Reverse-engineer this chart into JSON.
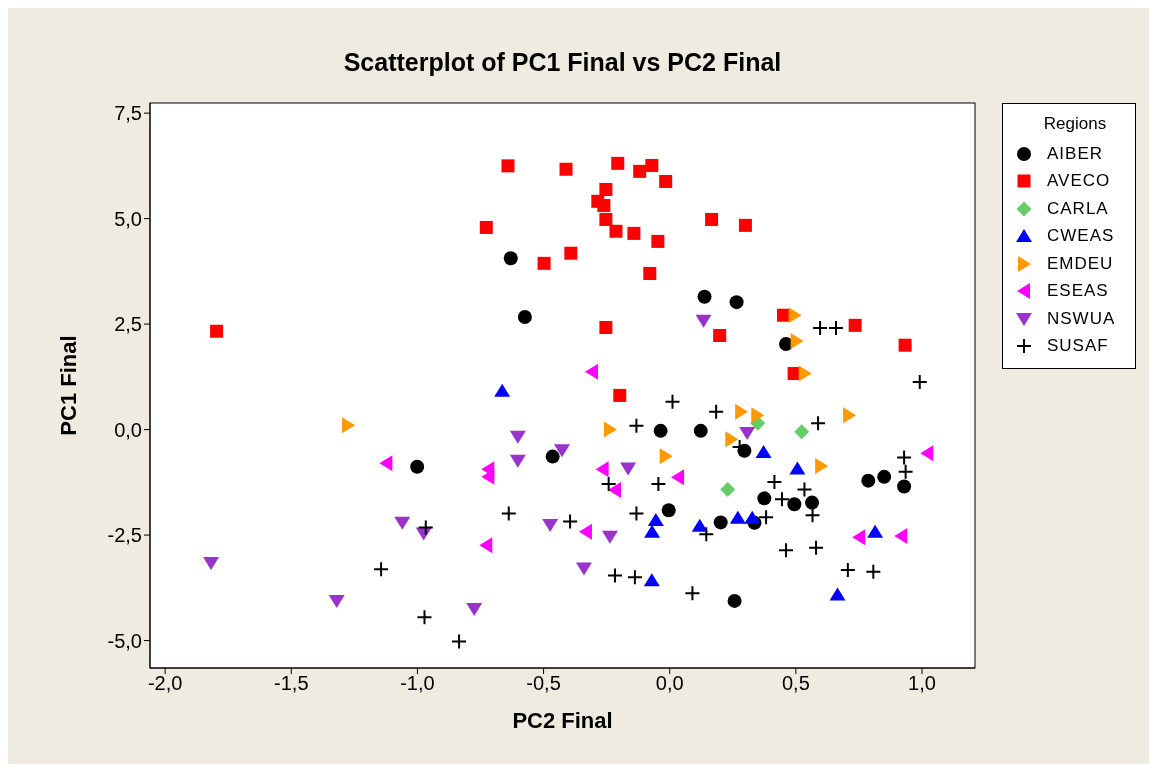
{
  "chart_data": {
    "type": "scatter",
    "title": "Scatterplot of PC1 Final vs PC2 Final",
    "xlabel": "PC2 Final",
    "ylabel": "PC1 Final",
    "legend_title": "Regions",
    "legend": "top right",
    "grid": false,
    "xlim": [
      -2.06,
      1.21
    ],
    "ylim": [
      -5.65,
      7.74
    ],
    "xticks": [
      {
        "value": -2.0,
        "label": "-2,0"
      },
      {
        "value": -1.5,
        "label": "-1,5"
      },
      {
        "value": -1.0,
        "label": "-1,0"
      },
      {
        "value": -0.5,
        "label": "-0,5"
      },
      {
        "value": 0.0,
        "label": "0,0"
      },
      {
        "value": 0.5,
        "label": "0,5"
      },
      {
        "value": 1.0,
        "label": "1,0"
      }
    ],
    "yticks": [
      {
        "value": -5.0,
        "label": "-5,0"
      },
      {
        "value": -2.5,
        "label": "-2,5"
      },
      {
        "value": 0.0,
        "label": "0,0"
      },
      {
        "value": 2.5,
        "label": "2,5"
      },
      {
        "value": 5.0,
        "label": "5,0"
      },
      {
        "value": 7.5,
        "label": "7,5"
      }
    ],
    "series": [
      {
        "name": "AIBER",
        "color": "#000000",
        "marker": "circle",
        "x": [
          -0.63,
          -0.574,
          0.138,
          0.265,
          0.461,
          -1.001,
          -0.464,
          -0.036,
          0.123,
          0.296,
          0.787,
          0.85,
          0.929,
          0.375,
          0.494,
          0.564,
          -0.004,
          0.202,
          0.336,
          0.257
        ],
        "values": [
          4.06,
          2.67,
          3.15,
          3.02,
          2.03,
          -0.88,
          -0.64,
          -0.03,
          -0.03,
          -0.5,
          -1.21,
          -1.12,
          -1.35,
          -1.63,
          -1.77,
          -1.73,
          -1.91,
          -2.2,
          -2.21,
          -4.06
        ]
      },
      {
        "name": "AVECO",
        "color": "#ff0000",
        "marker": "square",
        "x": [
          -0.641,
          -0.411,
          -0.727,
          -0.498,
          -0.392,
          -1.796,
          -0.206,
          -0.119,
          -0.071,
          -0.016,
          -0.253,
          -0.285,
          -0.261,
          -0.253,
          -0.213,
          -0.142,
          -0.047,
          0.166,
          0.3,
          -0.079,
          -0.253,
          0.198,
          0.451,
          0.735,
          0.933,
          0.493,
          -0.198
        ],
        "values": [
          6.25,
          6.17,
          4.79,
          3.94,
          4.18,
          2.33,
          6.31,
          6.12,
          6.26,
          5.88,
          5.69,
          5.41,
          5.31,
          4.98,
          4.7,
          4.65,
          4.46,
          4.98,
          4.84,
          3.7,
          2.42,
          2.23,
          2.71,
          2.47,
          2.0,
          1.33,
          0.81
        ]
      },
      {
        "name": "CARLA",
        "color": "#66cc66",
        "marker": "diamond",
        "x": [
          0.349,
          0.523,
          0.23
        ],
        "values": [
          0.15,
          -0.05,
          -1.42
        ]
      },
      {
        "name": "CWEAS",
        "color": "#0000ff",
        "marker": "triangle",
        "x": [
          -0.664,
          0.372,
          0.506,
          0.814,
          -0.055,
          -0.07,
          0.119,
          0.27,
          0.327,
          -0.071,
          0.665
        ],
        "values": [
          0.92,
          -0.53,
          -0.92,
          -2.42,
          -2.14,
          -2.42,
          -2.28,
          -2.09,
          -2.09,
          -3.57,
          -3.91
        ]
      },
      {
        "name": "EMDEU",
        "color": "#ff9900",
        "marker": "triangle-right",
        "x": [
          0.495,
          0.503,
          0.535,
          -1.275,
          0.283,
          0.347,
          -0.237,
          0.244,
          0.711,
          -0.016,
          0.6
        ],
        "values": [
          2.71,
          2.1,
          1.33,
          0.1,
          0.42,
          0.34,
          0.0,
          -0.23,
          0.34,
          -0.63,
          -0.86
        ]
      },
      {
        "name": "ESEAS",
        "color": "#ff00ff",
        "marker": "triangle-left",
        "x": [
          -0.308,
          -1.123,
          -0.719,
          -0.719,
          -0.727,
          1.021,
          -0.266,
          0.033,
          -0.217,
          -0.332,
          0.751,
          0.918
        ],
        "values": [
          1.37,
          -0.8,
          -0.94,
          -1.12,
          -2.74,
          -0.56,
          -0.94,
          -1.13,
          -1.43,
          -2.42,
          -2.55,
          -2.52
        ]
      },
      {
        "name": "NSWUA",
        "color": "#9933cc",
        "marker": "triangle-down",
        "x": [
          0.134,
          -0.602,
          -0.602,
          -0.427,
          -1.06,
          -0.975,
          -0.474,
          -1.818,
          -1.32,
          -0.775,
          0.307,
          -0.165,
          -0.237,
          -0.34
        ],
        "values": [
          2.58,
          -0.17,
          -0.74,
          -0.49,
          -2.21,
          -2.46,
          -2.26,
          -3.16,
          -4.06,
          -4.25,
          -0.08,
          -0.92,
          -2.54,
          -3.29
        ]
      },
      {
        "name": "SUSAF",
        "color": "#000000",
        "marker": "cross",
        "x": [
          0.596,
          0.659,
          0.991,
          -0.967,
          -0.638,
          -1.144,
          -0.972,
          -0.835,
          -0.395,
          0.011,
          0.184,
          -0.132,
          0.588,
          0.277,
          0.929,
          0.935,
          -0.242,
          -0.045,
          0.415,
          0.534,
          0.445,
          0.566,
          0.382,
          -0.132,
          0.145,
          0.461,
          0.58,
          0.706,
          0.807,
          -0.217,
          -0.138,
          0.09
        ],
        "values": [
          2.41,
          2.41,
          1.13,
          -2.32,
          -1.99,
          -3.31,
          -4.45,
          -5.02,
          -2.18,
          0.66,
          0.42,
          0.09,
          0.15,
          -0.41,
          -0.66,
          -1.0,
          -1.29,
          -1.29,
          -1.24,
          -1.42,
          -1.65,
          -2.03,
          -2.08,
          -1.99,
          -2.48,
          -2.86,
          -2.8,
          -3.33,
          -3.37,
          -3.46,
          -3.5,
          -3.88
        ]
      }
    ]
  }
}
